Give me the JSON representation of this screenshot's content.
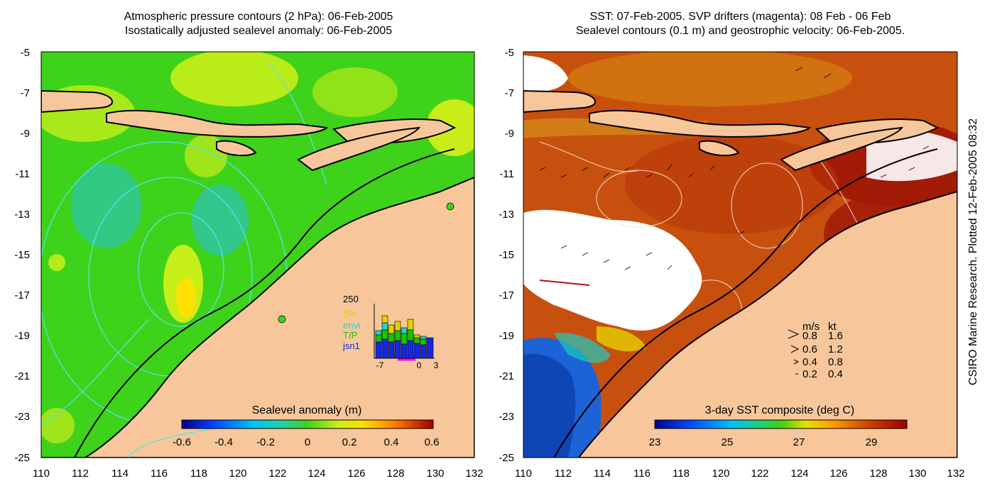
{
  "left_panel": {
    "title_line1": "Atmospheric pressure contours (2 hPa): 06-Feb-2005",
    "title_line2": "Isostatically adjusted sealevel anomaly: 06-Feb-2005",
    "y_ticks": [
      "-5",
      "-7",
      "-9",
      "-11",
      "-13",
      "-15",
      "-17",
      "-19",
      "-21",
      "-23",
      "-25"
    ],
    "x_ticks": [
      "110",
      "112",
      "114",
      "116",
      "118",
      "120",
      "122",
      "124",
      "126",
      "128",
      "130",
      "132"
    ],
    "colorbar_title": "Sealevel anomaly (m)",
    "colorbar_ticks": [
      "-0.6",
      "-0.4",
      "-0.2",
      "0",
      "0.2",
      "0.4",
      "0.6"
    ],
    "inset": {
      "top_label": "250",
      "legend": [
        "gfo",
        "envi",
        "T/P",
        "jsn1"
      ],
      "legend_colors": [
        "#e6d000",
        "#22d3c8",
        "#19c400",
        "#1428e0"
      ],
      "x_ticks": [
        "-7",
        "0",
        "3"
      ]
    }
  },
  "right_panel": {
    "title_line1": "SST: 07-Feb-2005. SVP drifters (magenta): 08 Feb - 06 Feb",
    "title_line2": "Sealevel contours (0.1 m) and geostrophic velocity: 06-Feb-2005.",
    "y_ticks": [
      "-5",
      "-7",
      "-9",
      "-11",
      "-13",
      "-15",
      "-17",
      "-19",
      "-21",
      "-23",
      "-25"
    ],
    "x_ticks": [
      "110",
      "112",
      "114",
      "116",
      "118",
      "120",
      "122",
      "124",
      "126",
      "128",
      "130",
      "132"
    ],
    "velocity_legend": {
      "header_ms": "m/s",
      "header_kt": "kt",
      "rows": [
        {
          "ms": "0.8",
          "kt": "1.6"
        },
        {
          "ms": "0.6",
          "kt": "1.2"
        },
        {
          "ms": "0.4",
          "kt": "0.8"
        },
        {
          "ms": "0.2",
          "kt": "0.4"
        }
      ]
    },
    "colorbar_title": "3-day SST composite (deg C)",
    "colorbar_ticks": [
      "23",
      "25",
      "27",
      "29"
    ]
  },
  "credit": "CSIRO Marine Research. Plotted 12-Feb-2005 08:32",
  "colors": {
    "land": "#f7c79b",
    "sla_green": "#3fd21a",
    "sla_cyan": "#2fc6a8",
    "sla_yellow": "#c9ee1a",
    "sst_warm": "#c0420a",
    "sst_dark": "#9c1505",
    "sst_cool": "#1c63d6",
    "contour_cyan": "#4ee6e6"
  }
}
